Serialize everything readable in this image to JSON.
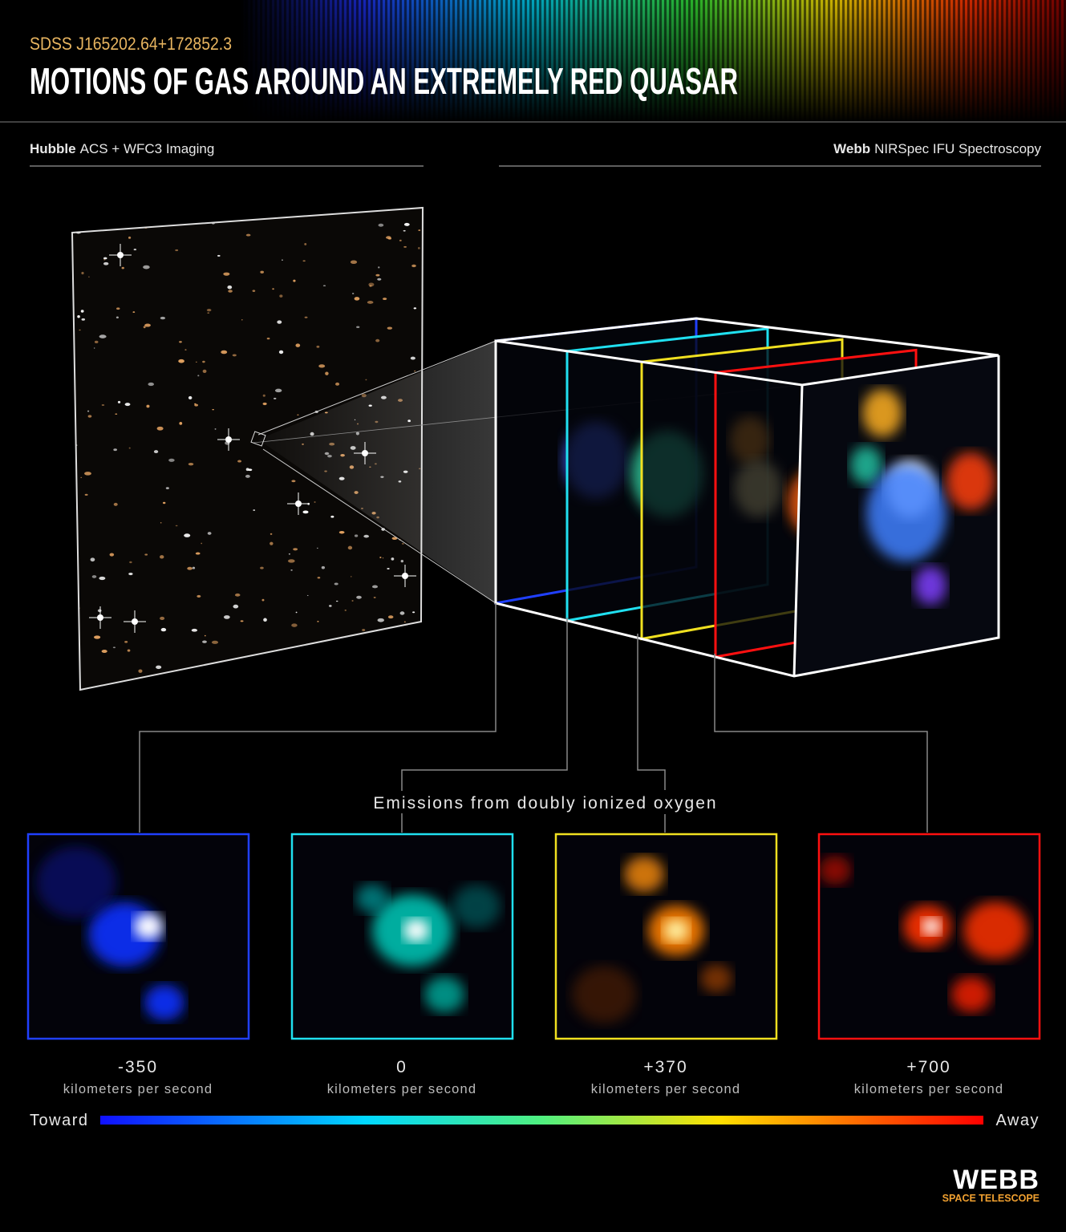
{
  "header": {
    "subtitle": "SDSS J165202.64+172852.3",
    "title": "MOTIONS OF GAS AROUND AN EXTREMELY RED QUASAR"
  },
  "left_section": {
    "observatory": "Hubble",
    "instrument": "ACS + WFC3 Imaging"
  },
  "right_section": {
    "observatory": "Webb",
    "instrument": "NIRSpec IFU Spectroscopy"
  },
  "caption": "Emissions from doubly ionized oxygen",
  "panels": [
    {
      "velocity": "-350",
      "unit": "kilometers per second"
    },
    {
      "velocity": "0",
      "unit": "kilometers per second"
    },
    {
      "velocity": "+370",
      "unit": "kilometers per second"
    },
    {
      "velocity": "+700",
      "unit": "kilometers per second"
    }
  ],
  "scale": {
    "left": "Toward",
    "right": "Away"
  },
  "logo": {
    "name": "WEBB",
    "subtitle": "SPACE TELESCOPE"
  }
}
